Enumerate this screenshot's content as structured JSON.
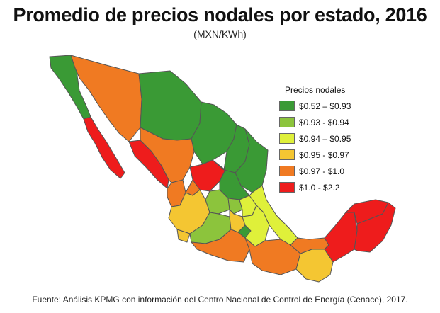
{
  "title": "Promedio de precios nodales por estado, 2016",
  "subtitle": "(MXN/KWh)",
  "legend": {
    "title": "Precios nodales",
    "items": [
      {
        "label": "$0.52 – $0.93",
        "color": "#3a9a35"
      },
      {
        "label": "$0.93 - $0.94",
        "color": "#8cc43c"
      },
      {
        "label": "$0.94 – $0.95",
        "color": "#dff03a"
      },
      {
        "label": "$0.95 - $0.97",
        "color": "#f4c632"
      },
      {
        "label": "$0.97 - $1.0",
        "color": "#f07a22"
      },
      {
        "label": "$1.0 - $2.2",
        "color": "#ee1c1c"
      }
    ]
  },
  "source": "Fuente: Análisis KPMG con información del Centro Nacional de Control de Energía (Cenace), 2017."
}
